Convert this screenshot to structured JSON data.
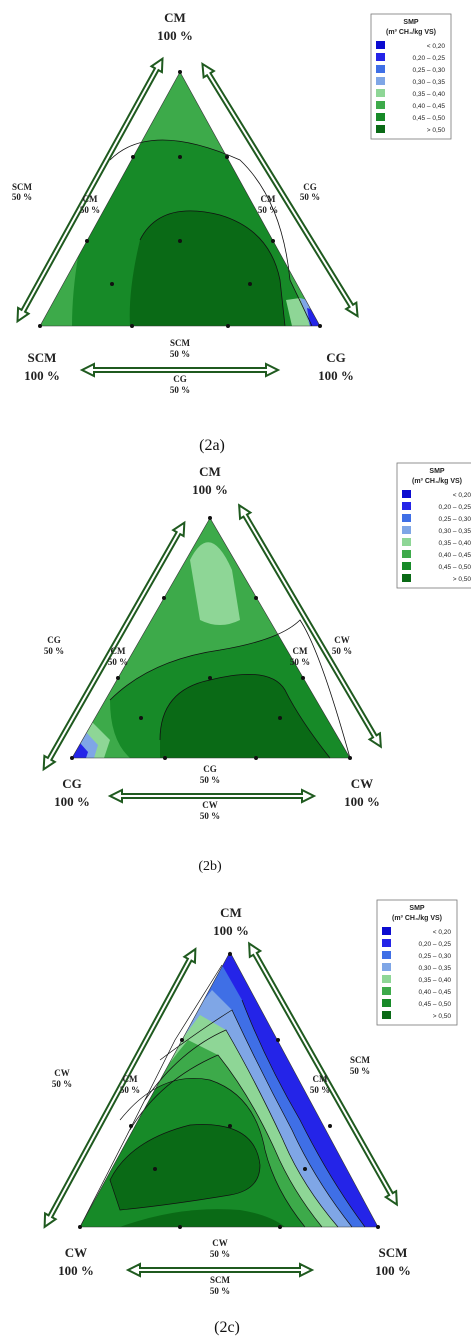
{
  "palette": [
    "#0b0bd0",
    "#2424e8",
    "#3f6fe6",
    "#7fa6e6",
    "#8ed696",
    "#3daa4a",
    "#178a28",
    "#0a6a16"
  ],
  "legend": {
    "title": "SMP",
    "unit": "(m³ CH₄/kg VS)",
    "entries": [
      "< 0,20",
      "0,20 – 0,25",
      "0,25 – 0,30",
      "0,30 – 0,35",
      "0,35 – 0,40",
      "0,40 – 0,45",
      "0,45 – 0,50",
      "> 0,50"
    ]
  },
  "panels": [
    {
      "caption": "(2a)",
      "top": {
        "name": "CM",
        "pct": "100 %"
      },
      "left": {
        "name": "SCM",
        "pct": "100 %"
      },
      "right": {
        "name": "CG",
        "pct": "100 %"
      },
      "left_edge": {
        "outer": "SCM",
        "outer_pct": "50 %",
        "inner": "CM",
        "inner_pct": "50 %"
      },
      "right_edge": {
        "outer": "CG",
        "outer_pct": "50 %",
        "inner": "CM",
        "inner_pct": "50 %"
      },
      "bottom_edge": {
        "top": "SCM",
        "top_pct": "50 %",
        "bottom": "CG",
        "bottom_pct": "50 %"
      }
    },
    {
      "caption": "(2b)",
      "top": {
        "name": "CM",
        "pct": "100 %"
      },
      "left": {
        "name": "CG",
        "pct": "100 %"
      },
      "right": {
        "name": "CW",
        "pct": "100 %"
      },
      "left_edge": {
        "outer": "CG",
        "outer_pct": "50 %",
        "inner": "CM",
        "inner_pct": "50 %"
      },
      "right_edge": {
        "outer": "CW",
        "outer_pct": "50 %",
        "inner": "CM",
        "inner_pct": "50 %"
      },
      "bottom_edge": {
        "top": "CG",
        "top_pct": "50 %",
        "bottom": "CW",
        "bottom_pct": "50 %"
      }
    },
    {
      "caption": "(2c)",
      "top": {
        "name": "CM",
        "pct": "100 %"
      },
      "left": {
        "name": "CW",
        "pct": "100 %"
      },
      "right": {
        "name": "SCM",
        "pct": "100 %"
      },
      "left_edge": {
        "outer": "CW",
        "outer_pct": "50 %",
        "inner": "CM",
        "inner_pct": "50 %"
      },
      "right_edge": {
        "outer": "SCM",
        "outer_pct": "50 %",
        "inner": "CM",
        "inner_pct": "50 %"
      },
      "bottom_edge": {
        "top": "CW",
        "top_pct": "50 %",
        "bottom": "SCM",
        "bottom_pct": "50 %"
      }
    }
  ]
}
